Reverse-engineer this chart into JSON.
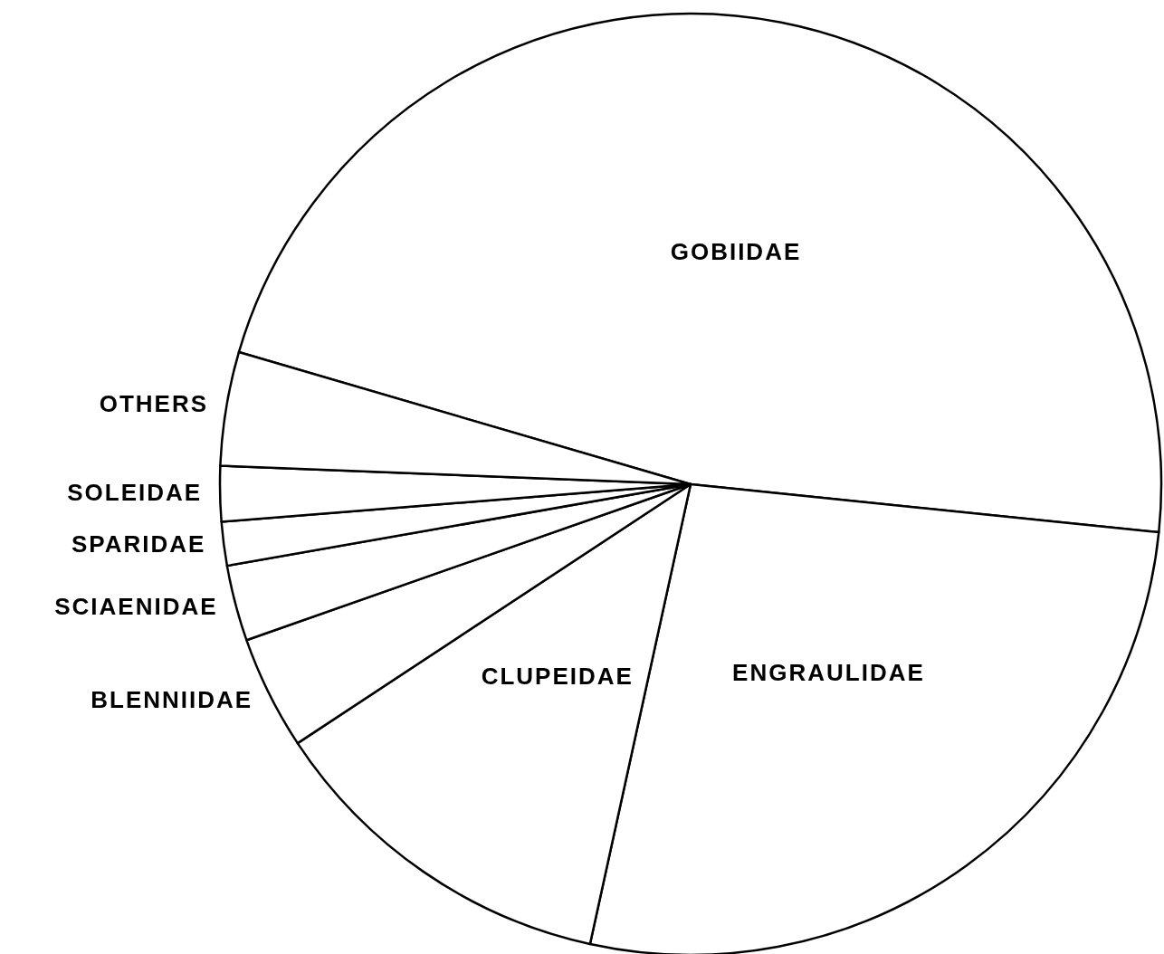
{
  "chart_data": {
    "type": "pie",
    "categories": [
      "GOBIIDAE",
      "ENGRAULIDAE",
      "CLUPEIDAE",
      "BLENNIIDAE",
      "SCIAENIDAE",
      "SPARIDAE",
      "SOLEIDAE",
      "OTHERS"
    ],
    "values": [
      47.1,
      26.8,
      12.3,
      3.9,
      2.6,
      1.5,
      1.9,
      3.9
    ],
    "colors": [
      "#ffffff",
      "#ffffff",
      "#ffffff",
      "#ffffff",
      "#ffffff",
      "#ffffff",
      "#ffffff",
      "#ffffff"
    ],
    "legend": false
  }
}
